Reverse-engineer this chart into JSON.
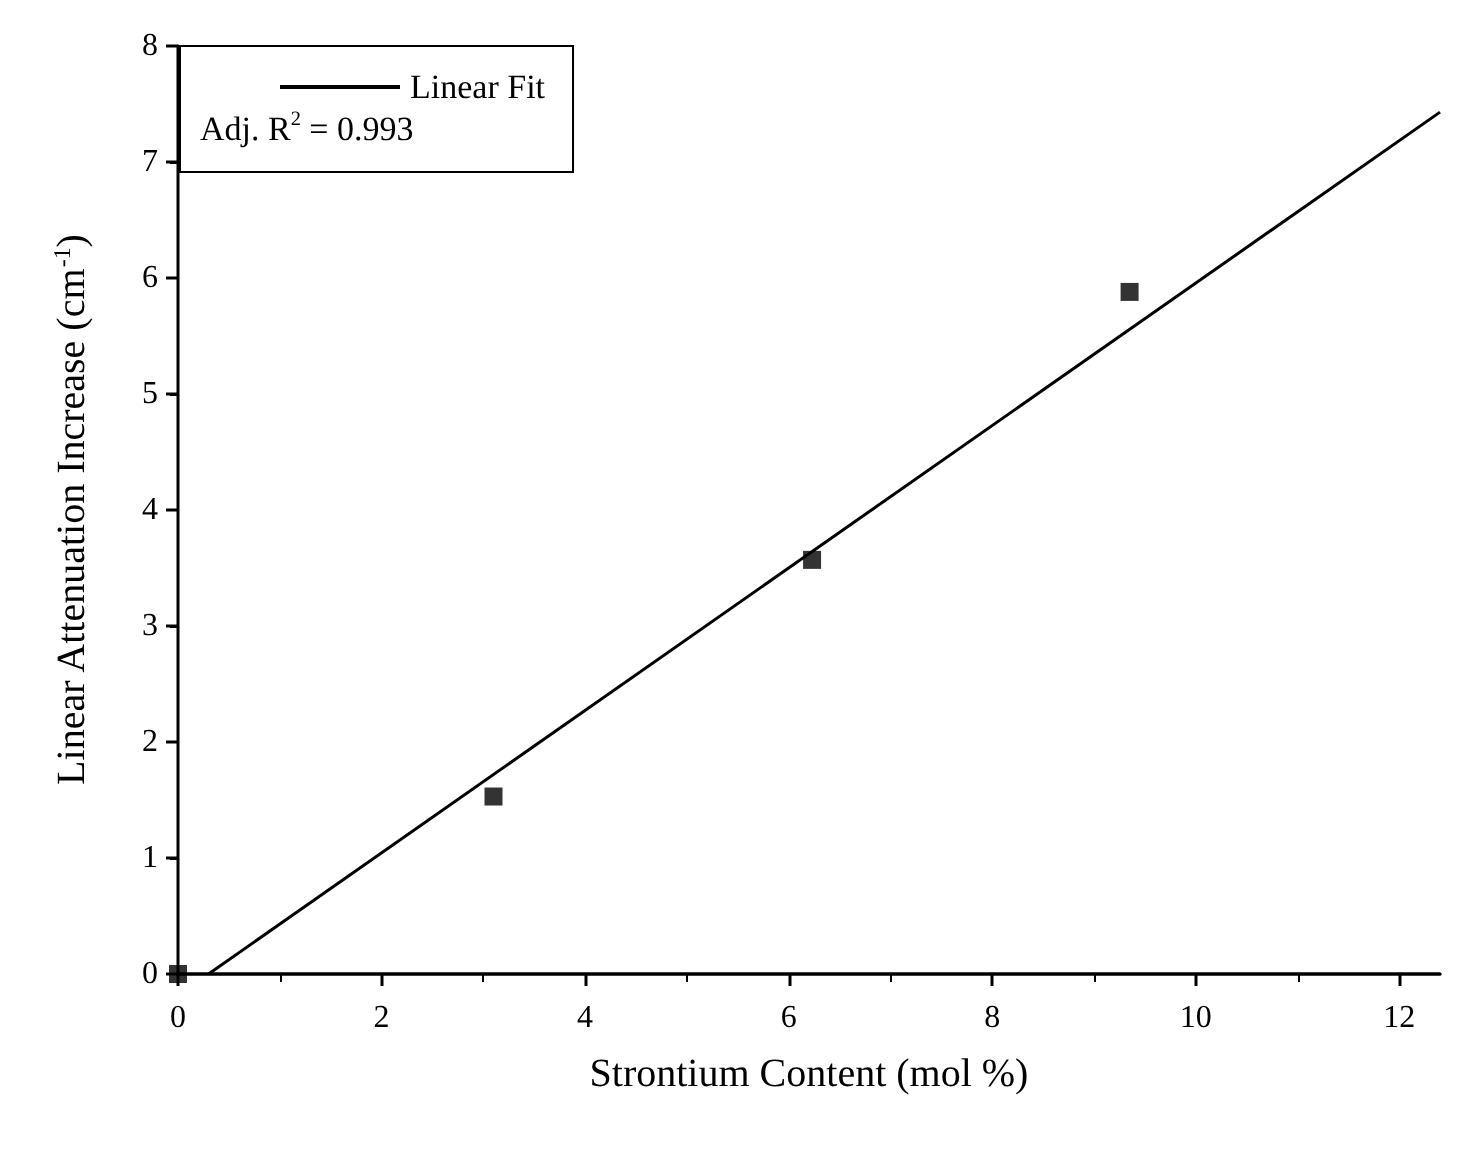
{
  "chart_data": {
    "type": "scatter",
    "xlabel": "Strontium Content (mol %)",
    "ylabel": "Linear Attenuation Increase (cm$^{-1}$)",
    "series": [
      {
        "color": "#000000",
        "x": [
          0,
          3.1,
          6.23,
          9.35
        ],
        "values": [
          0,
          1.53,
          3.57,
          5.88
        ],
        "marker": "square"
      },
      {
        "type": "line",
        "name": "Linear Fit",
        "color": "#000000",
        "x": [
          0.3,
          12.4
        ],
        "values": [
          0,
          7.43
        ],
        "marker": "none",
        "line_style": "solid"
      }
    ],
    "xlim": [
      0,
      12.4
    ],
    "xticks": [
      0,
      2,
      4,
      6,
      8,
      10,
      12
    ],
    "ylim": [
      0,
      8
    ],
    "yticks": [
      0,
      1,
      2,
      3,
      4,
      5,
      6,
      7,
      8
    ],
    "grid": false,
    "legend": "top left",
    "annotations": [
      "Adj. R$^{2}$ = 0.993"
    ]
  }
}
